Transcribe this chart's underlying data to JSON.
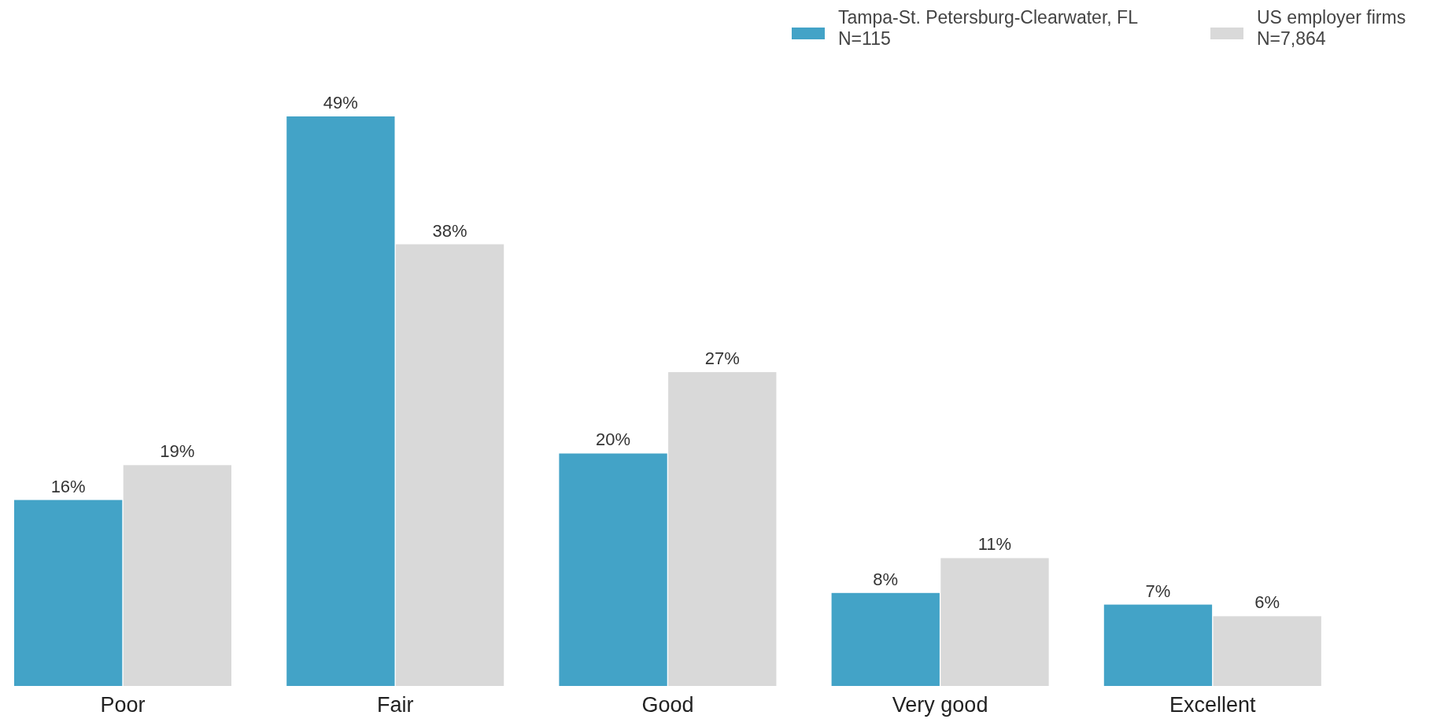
{
  "chart_data": {
    "type": "bar",
    "categories": [
      "Poor",
      "Fair",
      "Good",
      "Very good",
      "Excellent"
    ],
    "series": [
      {
        "name": "Tampa-St. Petersburg-Clearwater, FL\nN=115",
        "color": "#43a3c7",
        "values": [
          16,
          49,
          20,
          8,
          7
        ],
        "value_labels": [
          "16%",
          "49%",
          "20%",
          "8%",
          "7%"
        ]
      },
      {
        "name": "US employer firms\nN=7,864",
        "color": "#d9d9d9",
        "values": [
          19,
          38,
          27,
          11,
          6
        ],
        "value_labels": [
          "19%",
          "38%",
          "27%",
          "11%",
          "6%"
        ]
      }
    ],
    "legend": "top right"
  }
}
